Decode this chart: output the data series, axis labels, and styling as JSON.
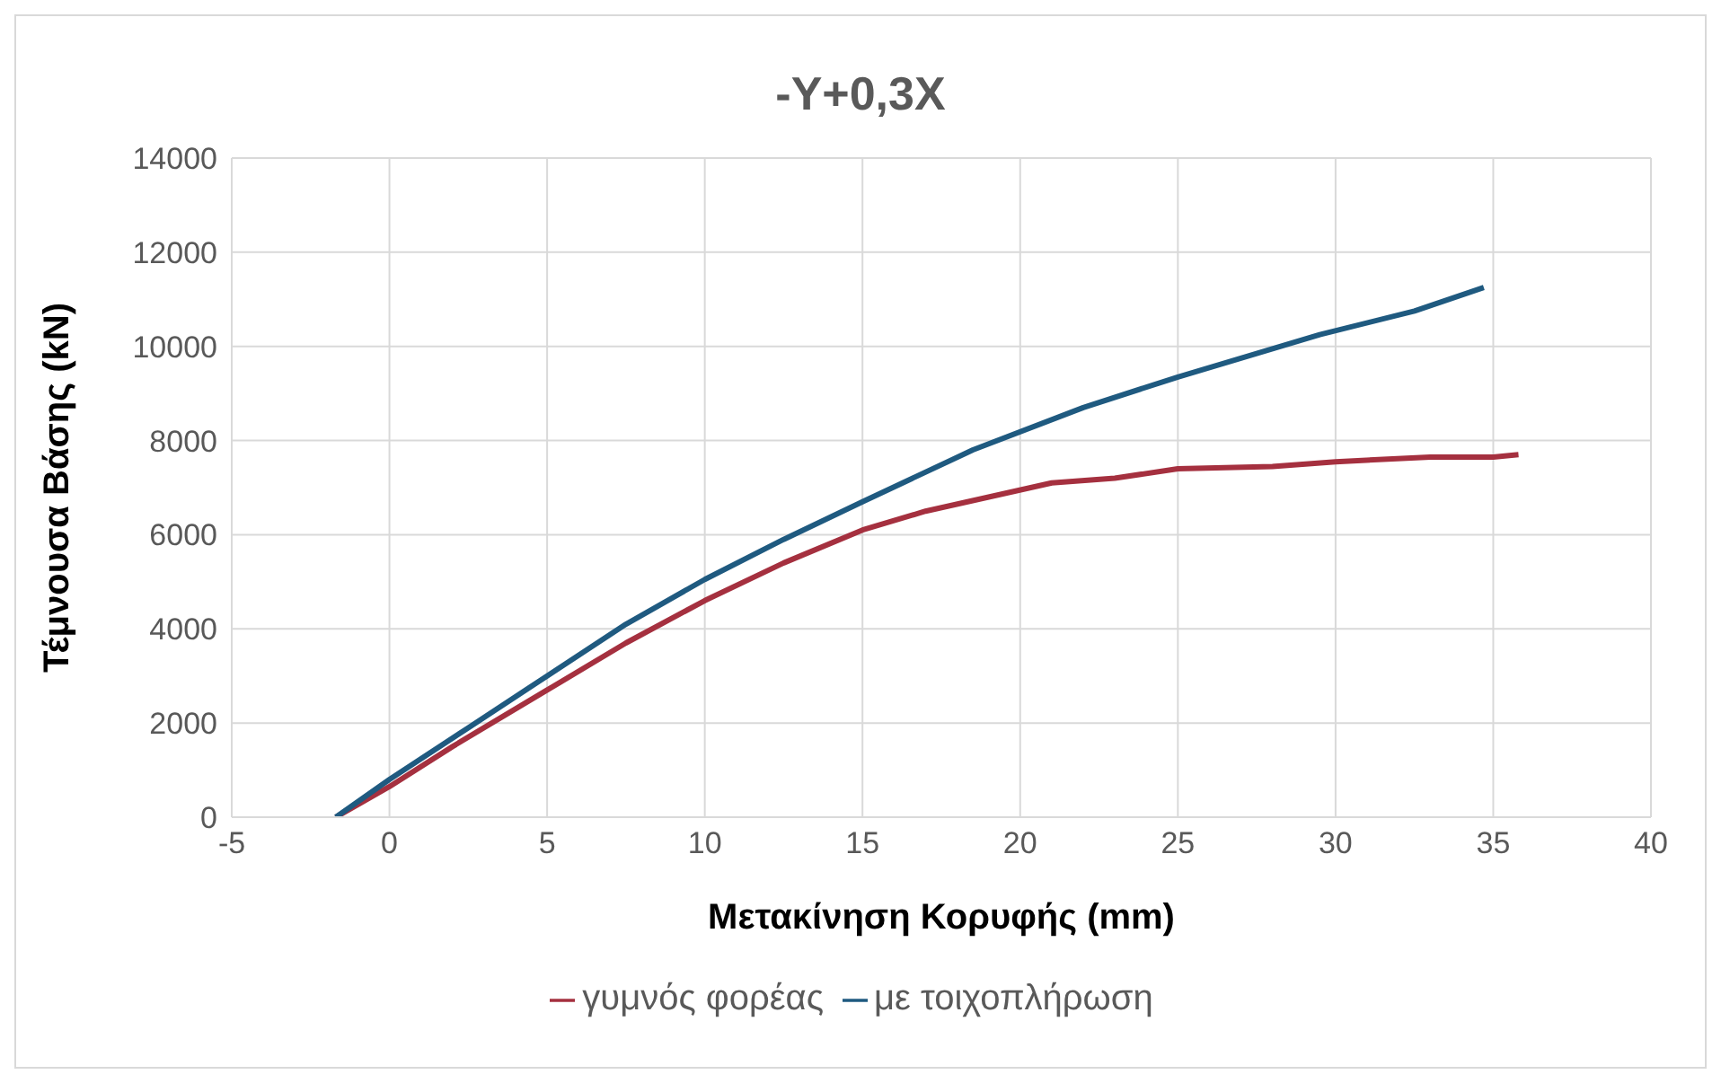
{
  "chart_data": {
    "type": "line",
    "title": "-Y+0,3X",
    "xlabel": "Μετακίνηση Κορυφής (mm)",
    "ylabel": "Τέμνουσα Βάσης (kN)",
    "xlim": [
      -5,
      40
    ],
    "xticks": [
      -5,
      0,
      5,
      10,
      15,
      20,
      25,
      30,
      35,
      40
    ],
    "ylim": [
      0,
      14000
    ],
    "yticks": [
      0,
      2000,
      4000,
      6000,
      8000,
      10000,
      12000,
      14000
    ],
    "grid": true,
    "legend": "bottom",
    "marker": "none",
    "series": [
      {
        "name": "γυμνός φορέας",
        "color": "#a5303f",
        "x": [
          -1.7,
          0,
          2,
          5,
          7.5,
          10,
          12.5,
          15,
          17,
          19,
          21,
          23,
          25,
          28,
          30,
          33,
          35,
          35.8
        ],
        "values": [
          0,
          650,
          1500,
          2700,
          3700,
          4600,
          5400,
          6100,
          6500,
          6800,
          7100,
          7200,
          7400,
          7450,
          7550,
          7650,
          7650,
          7700
        ]
      },
      {
        "name": "με τοιχοπλήρωση",
        "color": "#1f5a80",
        "x": [
          -1.7,
          0,
          2.5,
          5,
          7.5,
          10,
          12.5,
          15,
          18.5,
          22,
          25,
          27.5,
          29.5,
          32.5,
          34.7
        ],
        "values": [
          0,
          800,
          1900,
          3000,
          4100,
          5050,
          5900,
          6700,
          7800,
          8700,
          9350,
          9850,
          10250,
          10750,
          11250
        ]
      }
    ]
  }
}
